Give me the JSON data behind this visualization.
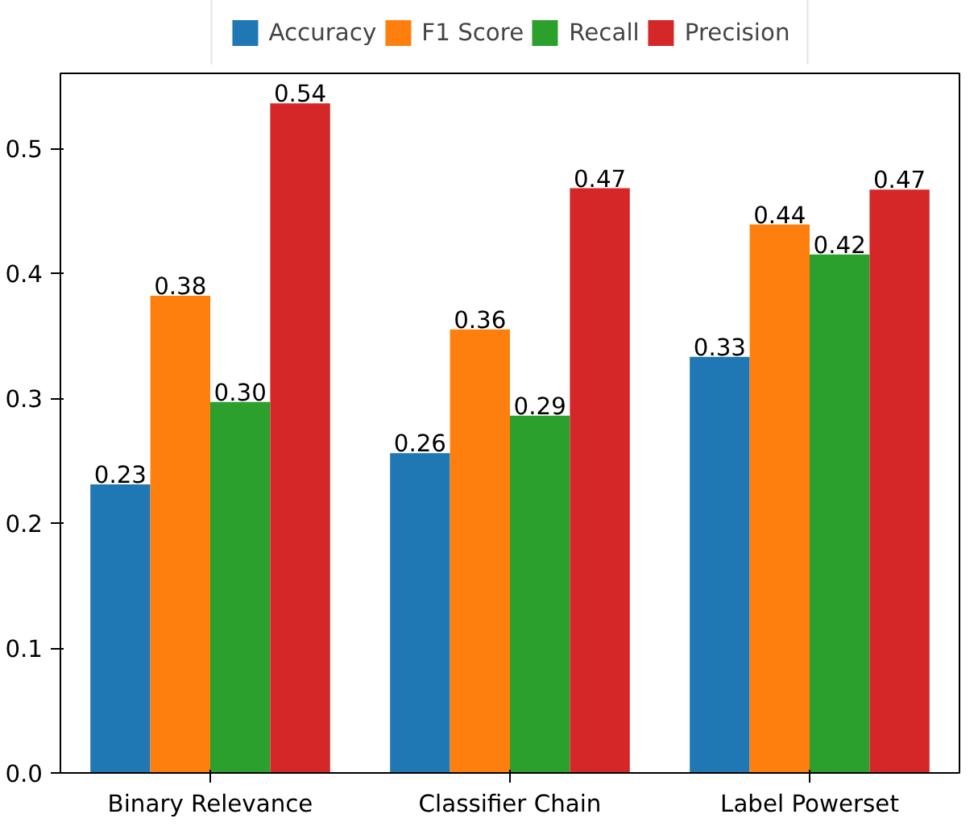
{
  "chart_data": {
    "type": "bar",
    "categories": [
      "Binary Relevance",
      "Classifier Chain",
      "Label Powerset"
    ],
    "series": [
      {
        "name": "Accuracy",
        "color": "#1f77b4",
        "values": [
          0.231,
          0.256,
          0.333
        ],
        "value_labels": [
          "0.23",
          "0.26",
          "0.33"
        ]
      },
      {
        "name": "F1 Score",
        "color": "#ff7f0e",
        "values": [
          0.382,
          0.355,
          0.439
        ],
        "value_labels": [
          "0.38",
          "0.36",
          "0.44"
        ]
      },
      {
        "name": "Recall",
        "color": "#2ca02c",
        "values": [
          0.297,
          0.286,
          0.415
        ],
        "value_labels": [
          "0.30",
          "0.29",
          "0.42"
        ]
      },
      {
        "name": "Precision",
        "color": "#d62728",
        "values": [
          0.536,
          0.468,
          0.467
        ],
        "value_labels": [
          "0.54",
          "0.47",
          "0.47"
        ]
      }
    ],
    "ylim": [
      0,
      0.56
    ],
    "yticks": [
      {
        "value": 0,
        "label": "0.0"
      },
      0.1,
      0.2,
      0.3,
      0.4,
      0.5
    ],
    "grid": false,
    "legend": "top"
  }
}
